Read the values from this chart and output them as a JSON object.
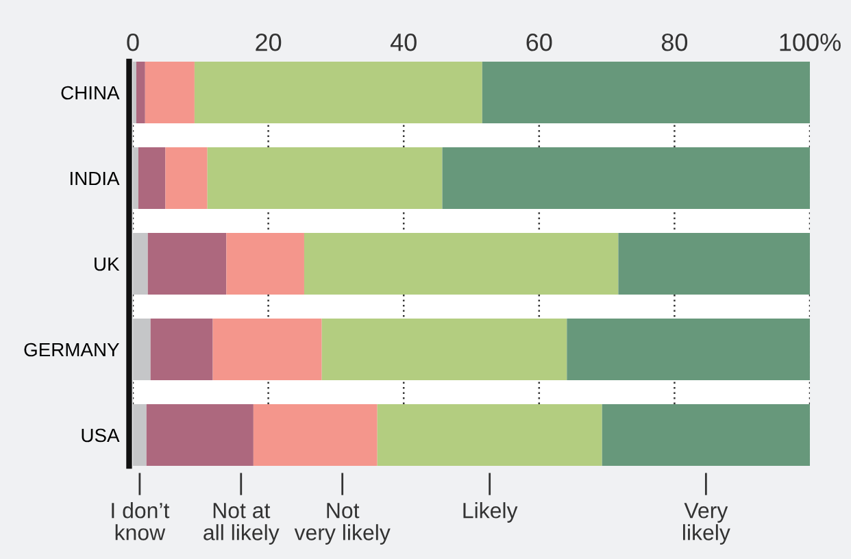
{
  "chart_data": {
    "type": "bar",
    "orientation": "horizontal",
    "stacked": true,
    "categories": [
      "CHINA",
      "INDIA",
      "UK",
      "GERMANY",
      "USA"
    ],
    "series": [
      {
        "name": "I don’t\nknow",
        "color": "#c5c6c8",
        "values": [
          0.5,
          0.8,
          2.2,
          2.6,
          2.0
        ]
      },
      {
        "name": "Not at\nall likely",
        "color": "#ad687e",
        "values": [
          1.3,
          4.0,
          11.6,
          9.2,
          15.8
        ]
      },
      {
        "name": "Not\nvery likely",
        "color": "#f4968c",
        "values": [
          7.3,
          6.2,
          11.5,
          16.1,
          18.3
        ]
      },
      {
        "name": "Likely",
        "color": "#b3cd80",
        "values": [
          42.5,
          34.7,
          46.4,
          36.2,
          33.2
        ]
      },
      {
        "name": "Very\nlikely",
        "color": "#67987b",
        "values": [
          48.4,
          54.3,
          28.3,
          35.9,
          30.7
        ]
      }
    ],
    "xlim": [
      0,
      100
    ],
    "xticks": [
      0,
      20,
      40,
      60,
      80,
      {
        "value": 100,
        "label": "100%"
      }
    ],
    "grid": "x",
    "legend": "bottom"
  }
}
